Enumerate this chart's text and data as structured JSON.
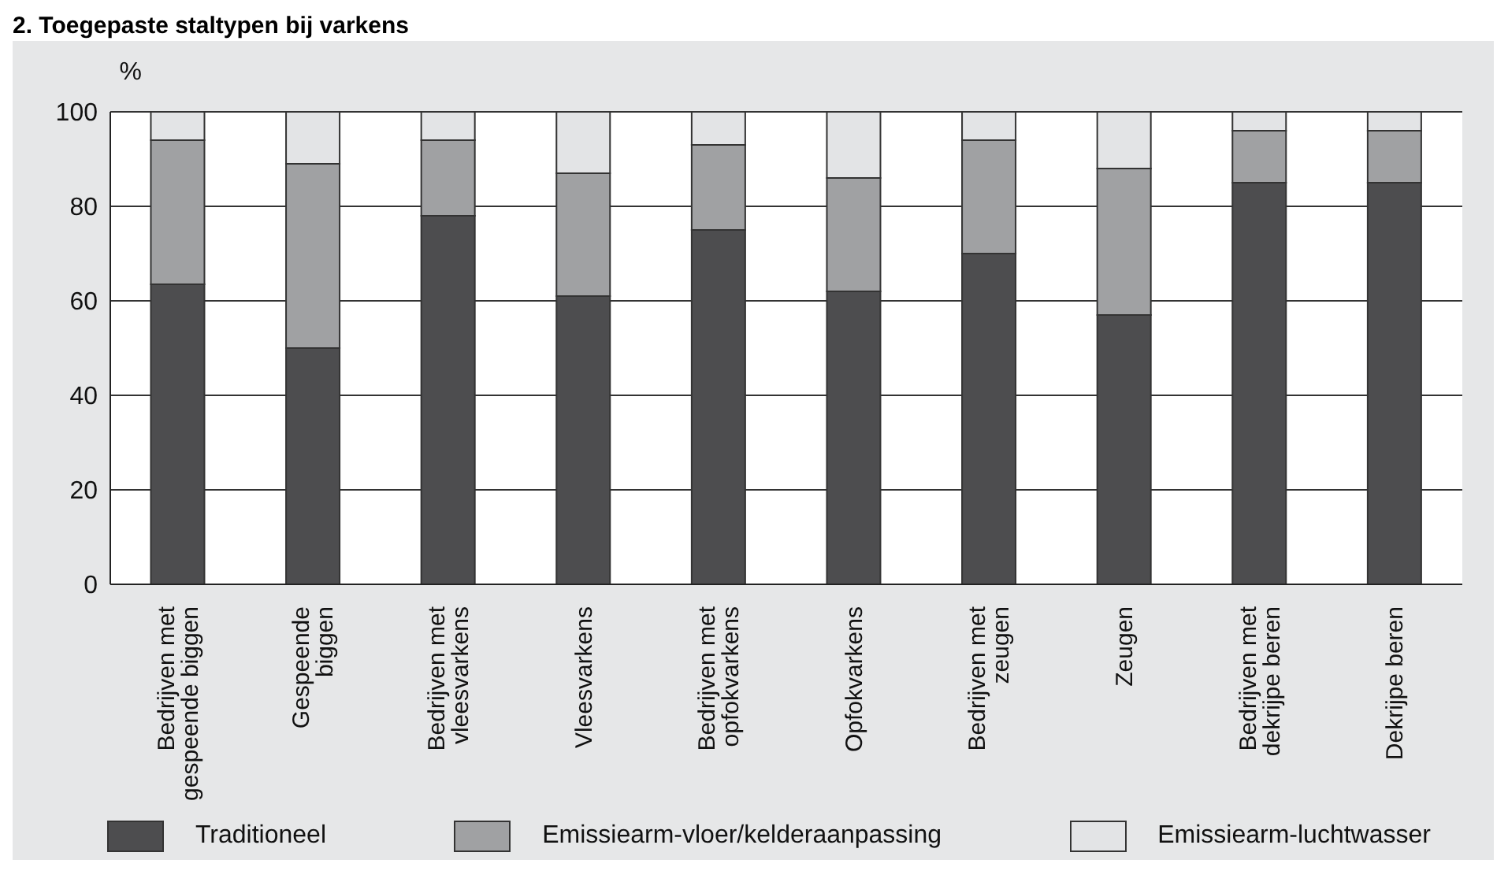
{
  "chart_data": {
    "type": "bar",
    "title": "2. Toegepaste staltypen bij varkens",
    "ylabel": "%",
    "stacked": true,
    "categories": [
      "Bedrijven met gespeende biggen",
      "Gespeende biggen",
      "Bedrijven met vleesvarkens",
      "Vleesvarkens",
      "Bedrijven met opfokvarkens",
      "Opfokvarkens",
      "Bedrijven met zeugen",
      "Zeugen",
      "Bedrijven met dekrijpe beren",
      "Dekrijpe beren"
    ],
    "series": [
      {
        "name": "Traditioneel",
        "color": "#4d4d4f",
        "values": [
          63.5,
          50,
          78,
          61,
          75,
          62,
          70,
          57,
          85,
          85
        ]
      },
      {
        "name": "Emissiearm-vloer/kelderaanpassing",
        "color": "#a0a1a3",
        "values": [
          30.5,
          39,
          16,
          26,
          18,
          24,
          24,
          31,
          11,
          11
        ]
      },
      {
        "name": "Emissiearm-luchtwasser",
        "color": "#e3e4e6",
        "values": [
          6,
          11,
          6,
          13,
          7,
          14,
          6,
          12,
          4,
          4
        ]
      }
    ],
    "ylim": [
      0,
      100
    ],
    "yticks": [
      0,
      20,
      40,
      60,
      80,
      100
    ],
    "grid": "y",
    "legend": "bottom"
  }
}
